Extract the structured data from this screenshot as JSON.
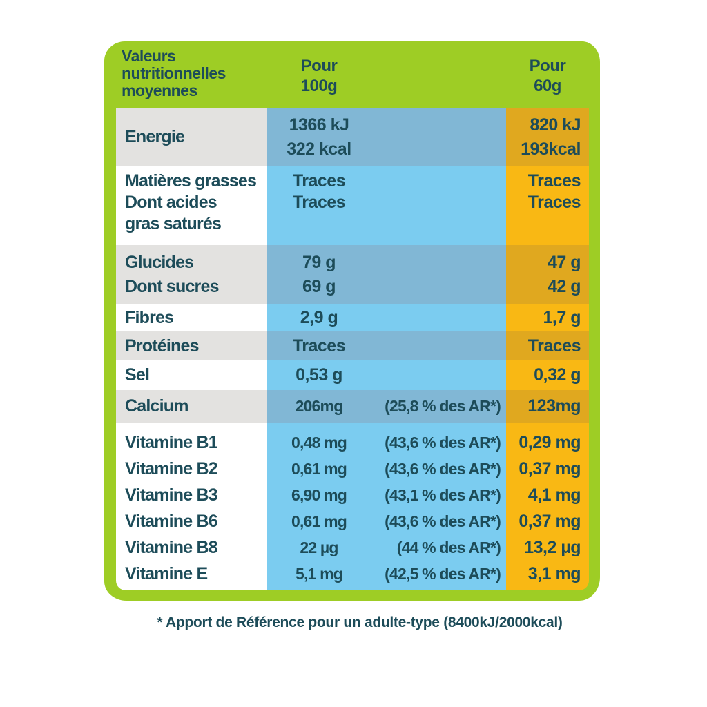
{
  "colors": {
    "panel_green": "#9ecd25",
    "text_teal": "#1d4c59",
    "blue_bright": "#7bccf0",
    "blue_shaded": "#81b7d5",
    "orange_bright": "#f9b814",
    "orange_shaded": "#e0a81f",
    "label_row_white": "#ffffff",
    "label_row_gray": "#e3e2e0",
    "page_background": "#ffffff"
  },
  "header": {
    "title_lines": [
      "Valeurs",
      "nutritionnelles",
      "moyennes"
    ],
    "per100_lines": [
      "Pour",
      "100g"
    ],
    "per60_lines": [
      "Pour",
      "60g"
    ]
  },
  "table": {
    "rows": [
      {
        "label": [
          "Energie"
        ],
        "per100": [
          "1366 kJ",
          "322 kcal"
        ],
        "per60": [
          "820 kJ",
          "193kcal"
        ]
      },
      {
        "label": [
          "Matières grasses",
          "Dont acides",
          "gras saturés"
        ],
        "per100": [
          "Traces",
          "Traces"
        ],
        "per60": [
          "Traces",
          "Traces"
        ]
      },
      {
        "label": [
          "Glucides",
          "Dont sucres"
        ],
        "per100": [
          "79 g",
          "69 g"
        ],
        "per60": [
          "47 g",
          "42 g"
        ]
      },
      {
        "label": [
          "Fibres"
        ],
        "per100": [
          "2,9 g"
        ],
        "per60": [
          "1,7 g"
        ]
      },
      {
        "label": [
          "Protéines"
        ],
        "per100": [
          "Traces"
        ],
        "per60": [
          "Traces"
        ]
      },
      {
        "label": [
          "Sel"
        ],
        "per100": [
          "0,53 g"
        ],
        "per60": [
          "0,32 g"
        ]
      },
      {
        "label": [
          "Calcium"
        ],
        "per100_value": "206mg",
        "per100_ar": "(25,8 % des AR*)",
        "per60": [
          "123mg"
        ]
      }
    ],
    "vitamins": [
      {
        "label": "Vitamine B1",
        "value": "0,48 mg",
        "ar": "(43,6 % des AR*)",
        "per60": "0,29 mg"
      },
      {
        "label": "Vitamine B2",
        "value": "0,61 mg",
        "ar": "(43,6 % des AR*)",
        "per60": "0,37 mg"
      },
      {
        "label": "Vitamine B3",
        "value": "6,90 mg",
        "ar": "(43,1 % des AR*)",
        "per60": "4,1 mg"
      },
      {
        "label": "Vitamine B6",
        "value": "0,61 mg",
        "ar": "(43,6 % des AR*)",
        "per60": "0,37 mg"
      },
      {
        "label": "Vitamine B8",
        "value": "22 µg",
        "ar": "(44 % des AR*)",
        "per60": "13,2 µg"
      },
      {
        "label": "Vitamine E",
        "value": "5,1 mg",
        "ar": "(42,5 % des AR*)",
        "per60": "3,1 mg"
      }
    ]
  },
  "footnote": "* Apport de Référence pour un adulte-type (8400kJ/2000kcal)"
}
